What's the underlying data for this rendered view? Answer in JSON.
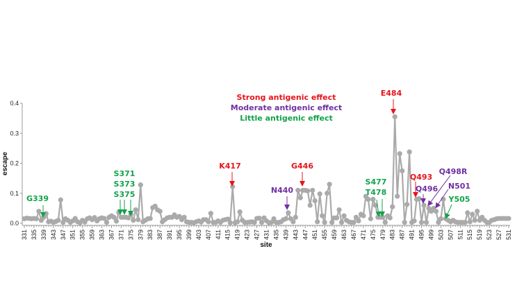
{
  "chart_data": {
    "type": "line",
    "title": "",
    "xlabel": "site",
    "ylabel": "escape",
    "xlim": [
      331,
      531
    ],
    "ylim": [
      0,
      0.4
    ],
    "yticks": [
      "0.0",
      "0.1",
      "0.2",
      "0.3",
      "0.4"
    ],
    "ytick_values": [
      0,
      0.1,
      0.2,
      0.3,
      0.4
    ],
    "xtick_start": 331,
    "xtick_step": 4,
    "grid": false,
    "series_color": "#aaaaaa",
    "series": [
      {
        "name": "escape",
        "x_start": 331,
        "values": [
          0.015,
          0.017,
          0.016,
          0.015,
          0.016,
          0.015,
          0.04,
          0.01,
          0.02,
          0.032,
          0.005,
          0.007,
          0.003,
          0.006,
          0.01,
          0.078,
          0.003,
          0.015,
          0.01,
          0.003,
          0.008,
          0.016,
          0.005,
          0.002,
          0.01,
          0.004,
          0.015,
          0.018,
          0.012,
          0.019,
          0.008,
          0.015,
          0.018,
          0.016,
          0.003,
          0.02,
          0.025,
          0.02,
          0.007,
          0.036,
          0.02,
          0.02,
          0.02,
          0.018,
          0.03,
          0.01,
          0.045,
          0.012,
          0.128,
          0.005,
          0.01,
          0.015,
          0.016,
          0.052,
          0.057,
          0.045,
          0.04,
          0.005,
          0.012,
          0.018,
          0.02,
          0.02,
          0.028,
          0.02,
          0.023,
          0.012,
          0.02,
          0.005,
          0.003,
          0.003,
          0.002,
          0.005,
          0.008,
          0.004,
          0.012,
          0.012,
          0.005,
          0.033,
          0.003,
          0.003,
          0.008,
          0.003,
          0.01,
          0.012,
          0.014,
          0.002,
          0.122,
          0.002,
          0.005,
          0.038,
          0.01,
          0.003,
          0.003,
          0.004,
          0.005,
          0.003,
          0.016,
          0.017,
          0.003,
          0.018,
          0.008,
          0.002,
          0.003,
          0.015,
          0.003,
          0.003,
          0.005,
          0.012,
          0.015,
          0.035,
          0.015,
          0.005,
          0.02,
          0.11,
          0.085,
          0.11,
          0.11,
          0.108,
          0.06,
          0.11,
          0.075,
          0.005,
          0.098,
          0.025,
          0.003,
          0.1,
          0.13,
          0.003,
          0.018,
          0.018,
          0.045,
          0.003,
          0.025,
          0.01,
          0.005,
          0.003,
          0.003,
          0.02,
          0.008,
          0.03,
          0.025,
          0.09,
          0.08,
          0.015,
          0.08,
          0.06,
          0.02,
          0.02,
          0.02,
          0.003,
          0.025,
          0.018,
          0.055,
          0.355,
          0.09,
          0.232,
          0.175,
          0.003,
          0.063,
          0.238,
          0.003,
          0.008,
          0.08,
          0.082,
          0.003,
          0.06,
          0.003,
          0.05,
          0.04,
          0.05,
          0.04,
          0.003,
          0.015,
          0.08,
          0.015,
          0.01,
          0.005,
          0.01,
          0.005,
          0.003,
          0.003,
          0.003,
          0.003,
          0.035,
          0.005,
          0.03,
          0.01,
          0.04,
          0.01,
          0.02,
          0.01,
          0.003,
          0.003,
          0.01,
          0.012,
          0.015,
          0.016,
          0.016,
          0.016,
          0.016,
          0.016
        ]
      }
    ],
    "legend": {
      "placement": "top-center",
      "entries": [
        {
          "label": "Strong antigenic effect",
          "color": "#e8131b"
        },
        {
          "label": "Moderate antigenic effect",
          "color": "#7030a0"
        },
        {
          "label": "Little antigenic effect",
          "color": "#12a24a"
        }
      ]
    },
    "annotations": [
      {
        "label": "G339",
        "site": 339,
        "effect": "little"
      },
      {
        "label": "S371",
        "site": 371,
        "effect": "little"
      },
      {
        "label": "S373",
        "site": 373,
        "effect": "little"
      },
      {
        "label": "S375",
        "site": 375,
        "effect": "little"
      },
      {
        "label": "K417",
        "site": 417,
        "effect": "strong"
      },
      {
        "label": "N440",
        "site": 440,
        "effect": "moderate"
      },
      {
        "label": "G446",
        "site": 446,
        "effect": "strong"
      },
      {
        "label": "S477",
        "site": 477,
        "effect": "little"
      },
      {
        "label": "T478",
        "site": 478,
        "effect": "little"
      },
      {
        "label": "E484",
        "site": 484,
        "effect": "strong"
      },
      {
        "label": "Q493",
        "site": 493,
        "effect": "strong"
      },
      {
        "label": "Q496",
        "site": 496,
        "effect": "moderate"
      },
      {
        "label": "Q498R",
        "site": 498,
        "effect": "moderate"
      },
      {
        "label": "N501",
        "site": 501,
        "effect": "moderate"
      },
      {
        "label": "Y505",
        "site": 505,
        "effect": "little"
      }
    ]
  }
}
